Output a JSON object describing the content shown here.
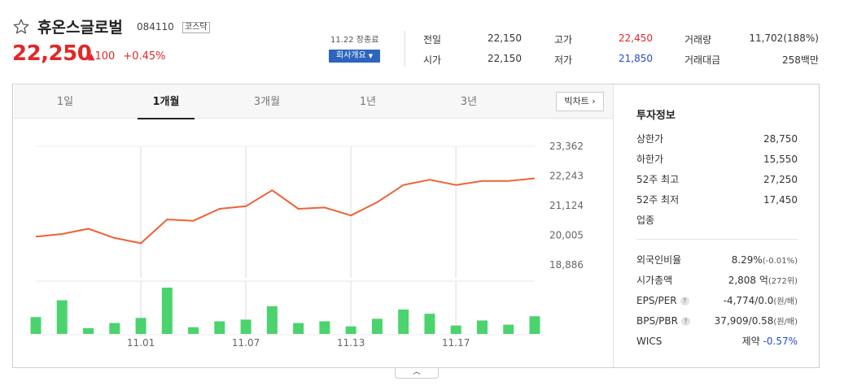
{
  "stock": {
    "name": "휴온스글로벌",
    "code": "084110",
    "market": "코스닥",
    "price": "22,250",
    "change_arrow": "▲",
    "change": "100",
    "change_pct": "+0.45%"
  },
  "header": {
    "date_label": "11.22 장종료",
    "corp_button": "회사개요",
    "stats": {
      "prev_close_label": "전일",
      "prev_close": "22,150",
      "open_label": "시가",
      "open": "22,150",
      "high_label": "고가",
      "high": "22,450",
      "low_label": "저가",
      "low": "21,850",
      "volume_label": "거래량",
      "volume": "11,702(188%)",
      "amount_label": "거래대금",
      "amount": "258백만"
    },
    "colors": {
      "up": "#e12828",
      "down": "#1f4fc7",
      "accent": "#2d64bc"
    }
  },
  "tabs": [
    "1일",
    "1개월",
    "3개월",
    "1년",
    "3년"
  ],
  "active_tab": "1개월",
  "big_chart_button": "빅차트",
  "fold_icon": "chevron-up-icon",
  "chart_data": {
    "type": "line",
    "x_ticks": [
      "11.01",
      "11.07",
      "11.13",
      "11.17"
    ],
    "y_ticks": [
      "23,362",
      "22,243",
      "21,124",
      "20,005",
      "18,886"
    ],
    "ylim": [
      18886,
      23362
    ],
    "price": [
      19950,
      20050,
      20250,
      19900,
      19700,
      20600,
      20550,
      21000,
      21100,
      21700,
      21000,
      21050,
      20750,
      21250,
      21900,
      22100,
      21900,
      22050,
      22050,
      22150
    ],
    "volume": [
      20,
      40,
      7,
      13,
      19,
      55,
      8,
      15,
      17,
      33,
      13,
      15,
      9,
      18,
      29,
      24,
      10,
      16,
      11,
      21
    ],
    "price_color": "#f06037",
    "volume_color": "#4bd36e"
  },
  "info": {
    "title": "투자정보",
    "upper_limit_label": "상한가",
    "upper_limit": "28,750",
    "lower_limit_label": "하한가",
    "lower_limit": "15,550",
    "high52_label": "52주 최고",
    "high52": "27,250",
    "low52_label": "52주 최저",
    "low52": "17,450",
    "sector_label": "업종",
    "foreign_label": "외국인비율",
    "foreign_value": "8.29%",
    "foreign_change": "(-0.01%)",
    "mcap_label": "시가총액",
    "mcap_value": "2,808 억",
    "mcap_rank": "(272위)",
    "eps_label": "EPS/PER",
    "eps_value": "-4,774/0.0",
    "eps_unit": "(원/배)",
    "bps_label": "BPS/PBR",
    "bps_value": "37,909/0.58",
    "bps_unit": "(원/배)",
    "help_mark": "?",
    "wics_label": "WICS",
    "wics_value": "제약",
    "wics_change": "-0.57%"
  }
}
